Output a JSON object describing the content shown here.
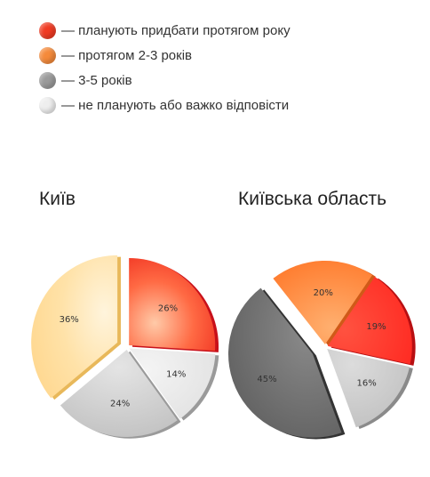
{
  "legend": {
    "items": [
      {
        "label": "— планують придбати протягом року",
        "color": "#f03a22"
      },
      {
        "label": "— протягом 2-3 років",
        "color": "#f58a3a"
      },
      {
        "label": "— 3-5 років",
        "color": "#9a9a9a"
      },
      {
        "label": "— не планують або важко відповісти",
        "color": "#eeeeee"
      }
    ]
  },
  "chart_data": [
    {
      "type": "pie",
      "title": "Київ",
      "slices": [
        {
          "category": "планують придбати протягом року",
          "value": 26,
          "label": "26%"
        },
        {
          "category": "не планують або важко відповісти",
          "value": 14,
          "label": "14%"
        },
        {
          "category": "3-5 років",
          "value": 24,
          "label": "24%"
        },
        {
          "category": "протягом 2-3 років",
          "value": 36,
          "label": "36%"
        }
      ],
      "colors": {
        "планують придбати протягом року": "#f03a22",
        "не планують або важко відповісти": "#eeeeee",
        "3-5 років": "#c6c6c6",
        "протягом 2-3 років": "#ffdca0"
      }
    },
    {
      "type": "pie",
      "title": "Київська область",
      "slices": [
        {
          "category": "протягом 2-3 років",
          "value": 20,
          "label": "20%"
        },
        {
          "category": "планують придбати протягом року",
          "value": 19,
          "label": "19%"
        },
        {
          "category": "не планують або важко відповісти",
          "value": 16,
          "label": "16%"
        },
        {
          "category": "3-5 років",
          "value": 45,
          "label": "45%"
        }
      ],
      "colors": {
        "планують придбати протягом року": "#ff2a22",
        "не планують або важко відповісти": "#c8c8c8",
        "3-5 років": "#666666",
        "протягом 2-3 років": "#ff7f30"
      }
    }
  ]
}
